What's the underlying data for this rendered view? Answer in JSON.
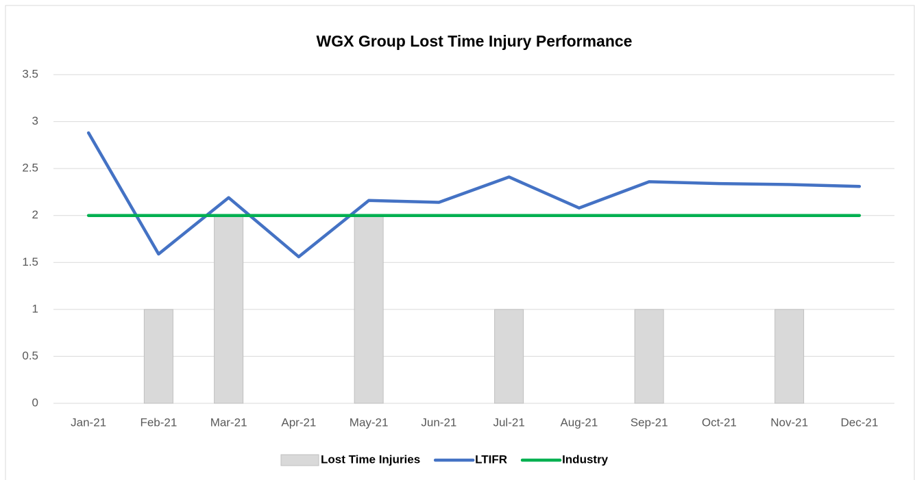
{
  "chart_data": {
    "type": "combo",
    "title": "WGX Group Lost Time Injury Performance",
    "categories": [
      "Jan-21",
      "Feb-21",
      "Mar-21",
      "Apr-21",
      "May-21",
      "Jun-21",
      "Jul-21",
      "Aug-21",
      "Sep-21",
      "Oct-21",
      "Nov-21",
      "Dec-21"
    ],
    "series": [
      {
        "name": "Lost Time Injuries",
        "type": "bar",
        "color": "#d9d9d9",
        "values": [
          0,
          1,
          2,
          0,
          2,
          0,
          1,
          0,
          1,
          0,
          1,
          0
        ]
      },
      {
        "name": "LTIFR",
        "type": "line",
        "color": "#4472c4",
        "values": [
          2.88,
          1.59,
          2.19,
          1.56,
          2.16,
          2.14,
          2.41,
          2.08,
          2.36,
          2.34,
          2.33,
          2.31
        ]
      },
      {
        "name": "Industry",
        "type": "line",
        "color": "#00b050",
        "values": [
          2,
          2,
          2,
          2,
          2,
          2,
          2,
          2,
          2,
          2,
          2,
          2
        ]
      }
    ],
    "ylim": [
      0,
      3.5
    ],
    "yticks": [
      0,
      0.5,
      1,
      1.5,
      2,
      2.5,
      3,
      3.5
    ],
    "grid": true,
    "legend": "bottom"
  }
}
